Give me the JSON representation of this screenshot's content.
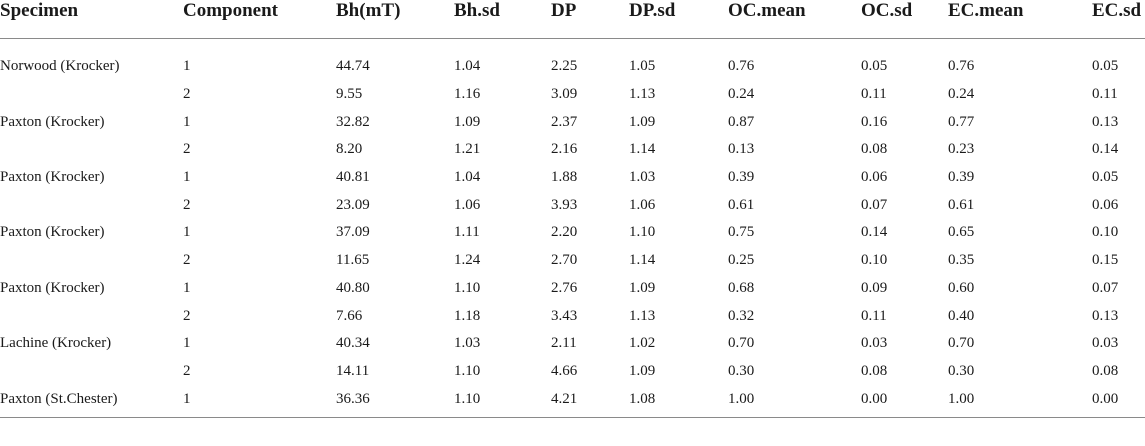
{
  "table": {
    "headers": [
      "Specimen",
      "Component",
      "Bh(mT)",
      "Bh.sd",
      "DP",
      "DP.sd",
      "OC.mean",
      "OC.sd",
      "EC.mean",
      "EC.sd"
    ],
    "rows": [
      [
        "Norwood (Krocker)",
        "1",
        "44.74",
        "1.04",
        "2.25",
        "1.05",
        "0.76",
        "0.05",
        "0.76",
        "0.05"
      ],
      [
        "",
        "2",
        "9.55",
        "1.16",
        "3.09",
        "1.13",
        "0.24",
        "0.11",
        "0.24",
        "0.11"
      ],
      [
        "Paxton (Krocker)",
        "1",
        "32.82",
        "1.09",
        "2.37",
        "1.09",
        "0.87",
        "0.16",
        "0.77",
        "0.13"
      ],
      [
        "",
        "2",
        "8.20",
        "1.21",
        "2.16",
        "1.14",
        "0.13",
        "0.08",
        "0.23",
        "0.14"
      ],
      [
        "Paxton (Krocker)",
        "1",
        "40.81",
        "1.04",
        "1.88",
        "1.03",
        "0.39",
        "0.06",
        "0.39",
        "0.05"
      ],
      [
        "",
        "2",
        "23.09",
        "1.06",
        "3.93",
        "1.06",
        "0.61",
        "0.07",
        "0.61",
        "0.06"
      ],
      [
        "Paxton (Krocker)",
        "1",
        "37.09",
        "1.11",
        "2.20",
        "1.10",
        "0.75",
        "0.14",
        "0.65",
        "0.10"
      ],
      [
        "",
        "2",
        "11.65",
        "1.24",
        "2.70",
        "1.14",
        "0.25",
        "0.10",
        "0.35",
        "0.15"
      ],
      [
        "Paxton (Krocker)",
        "1",
        "40.80",
        "1.10",
        "2.76",
        "1.09",
        "0.68",
        "0.09",
        "0.60",
        "0.07"
      ],
      [
        "",
        "2",
        "7.66",
        "1.18",
        "3.43",
        "1.13",
        "0.32",
        "0.11",
        "0.40",
        "0.13"
      ],
      [
        "Lachine (Krocker)",
        "1",
        "40.34",
        "1.03",
        "2.11",
        "1.02",
        "0.70",
        "0.03",
        "0.70",
        "0.03"
      ],
      [
        "",
        "2",
        "14.11",
        "1.10",
        "4.66",
        "1.09",
        "0.30",
        "0.08",
        "0.30",
        "0.08"
      ],
      [
        "Paxton (St.Chester)",
        "1",
        "36.36",
        "1.10",
        "4.21",
        "1.08",
        "1.00",
        "0.00",
        "1.00",
        "0.00"
      ]
    ]
  }
}
